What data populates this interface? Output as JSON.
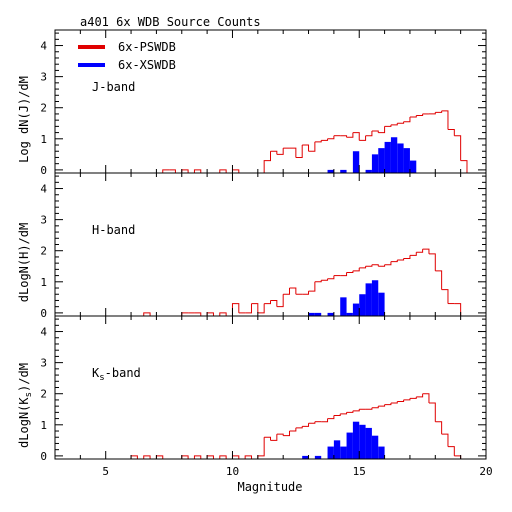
{
  "chart_data": {
    "type": "histogram",
    "title": "a401  6x WDB Source Counts",
    "xlabel": "Magnitude",
    "xlim": [
      3,
      20
    ],
    "ylim": [
      -0.1,
      4.5
    ],
    "x_ticks": [
      5,
      10,
      15,
      20
    ],
    "y_ticks": [
      0,
      1,
      2,
      3,
      4
    ],
    "bin_width": 0.25,
    "legend": [
      {
        "name": "6x-PSWDB",
        "color": "#e00000"
      },
      {
        "name": "6x-XSWDB",
        "color": "#0000ff"
      }
    ],
    "panels": [
      {
        "label": "J-band",
        "ylabel": "Log dN(J)/dM",
        "pswdb": [
          [
            7.25,
            0.0
          ],
          [
            7.5,
            0.0
          ],
          [
            8.0,
            0.0
          ],
          [
            8.5,
            0.0
          ],
          [
            9.5,
            0.0
          ],
          [
            10.0,
            0.0
          ],
          [
            11.25,
            0.3
          ],
          [
            11.5,
            0.6
          ],
          [
            11.75,
            0.5
          ],
          [
            12.0,
            0.7
          ],
          [
            12.25,
            0.7
          ],
          [
            12.5,
            0.4
          ],
          [
            12.75,
            0.8
          ],
          [
            13.0,
            0.6
          ],
          [
            13.25,
            0.9
          ],
          [
            13.5,
            0.95
          ],
          [
            13.75,
            1.0
          ],
          [
            14.0,
            1.1
          ],
          [
            14.25,
            1.1
          ],
          [
            14.5,
            1.05
          ],
          [
            14.75,
            1.2
          ],
          [
            15.0,
            0.95
          ],
          [
            15.25,
            1.1
          ],
          [
            15.5,
            1.25
          ],
          [
            15.75,
            1.2
          ],
          [
            16.0,
            1.4
          ],
          [
            16.25,
            1.45
          ],
          [
            16.5,
            1.5
          ],
          [
            16.75,
            1.55
          ],
          [
            17.0,
            1.7
          ],
          [
            17.25,
            1.75
          ],
          [
            17.5,
            1.8
          ],
          [
            17.75,
            1.8
          ],
          [
            18.0,
            1.85
          ],
          [
            18.25,
            1.9
          ],
          [
            18.5,
            1.3
          ],
          [
            18.75,
            1.1
          ],
          [
            19.0,
            0.3
          ]
        ],
        "xswdb": [
          [
            13.75,
            0.0
          ],
          [
            14.25,
            0.0
          ],
          [
            14.75,
            0.6
          ],
          [
            15.25,
            0.0
          ],
          [
            15.5,
            0.5
          ],
          [
            15.75,
            0.7
          ],
          [
            16.0,
            0.9
          ],
          [
            16.25,
            1.05
          ],
          [
            16.5,
            0.85
          ],
          [
            16.75,
            0.7
          ],
          [
            17.0,
            0.3
          ]
        ]
      },
      {
        "label": "H-band",
        "ylabel": "dLogN(H)/dM",
        "pswdb": [
          [
            6.5,
            0.0
          ],
          [
            8.0,
            0.0
          ],
          [
            8.25,
            0.0
          ],
          [
            8.5,
            0.0
          ],
          [
            9.0,
            0.0
          ],
          [
            9.5,
            0.0
          ],
          [
            10.0,
            0.3
          ],
          [
            10.25,
            0.0
          ],
          [
            10.5,
            0.0
          ],
          [
            10.75,
            0.3
          ],
          [
            11.0,
            0.0
          ],
          [
            11.25,
            0.3
          ],
          [
            11.5,
            0.4
          ],
          [
            11.75,
            0.2
          ],
          [
            12.0,
            0.6
          ],
          [
            12.25,
            0.8
          ],
          [
            12.5,
            0.6
          ],
          [
            12.75,
            0.6
          ],
          [
            13.0,
            0.7
          ],
          [
            13.25,
            1.0
          ],
          [
            13.5,
            1.05
          ],
          [
            13.75,
            1.1
          ],
          [
            14.0,
            1.2
          ],
          [
            14.25,
            1.2
          ],
          [
            14.5,
            1.3
          ],
          [
            14.75,
            1.35
          ],
          [
            15.0,
            1.45
          ],
          [
            15.25,
            1.5
          ],
          [
            15.5,
            1.55
          ],
          [
            15.75,
            1.5
          ],
          [
            16.0,
            1.55
          ],
          [
            16.25,
            1.65
          ],
          [
            16.5,
            1.7
          ],
          [
            16.75,
            1.75
          ],
          [
            17.0,
            1.85
          ],
          [
            17.25,
            1.95
          ],
          [
            17.5,
            2.05
          ],
          [
            17.75,
            1.9
          ],
          [
            18.0,
            1.35
          ],
          [
            18.25,
            0.75
          ],
          [
            18.5,
            0.3
          ],
          [
            18.75,
            0.3
          ]
        ],
        "xswdb": [
          [
            13.0,
            0.0
          ],
          [
            13.25,
            0.0
          ],
          [
            13.75,
            0.0
          ],
          [
            14.25,
            0.5
          ],
          [
            14.5,
            0.0
          ],
          [
            14.75,
            0.3
          ],
          [
            15.0,
            0.6
          ],
          [
            15.25,
            0.95
          ],
          [
            15.5,
            1.05
          ],
          [
            15.75,
            0.65
          ]
        ]
      },
      {
        "label": "K",
        "label_sub": "s",
        "label_suffix": "-band",
        "ylabel": "dLogN(K",
        "ylabel_sub": "s",
        "ylabel_suffix": ")/dM",
        "pswdb": [
          [
            6.0,
            0.0
          ],
          [
            6.5,
            0.0
          ],
          [
            7.0,
            0.0
          ],
          [
            8.0,
            0.0
          ],
          [
            8.5,
            0.0
          ],
          [
            9.0,
            0.0
          ],
          [
            9.5,
            0.0
          ],
          [
            10.0,
            0.0
          ],
          [
            10.5,
            0.0
          ],
          [
            11.0,
            0.0
          ],
          [
            11.25,
            0.6
          ],
          [
            11.5,
            0.5
          ],
          [
            11.75,
            0.7
          ],
          [
            12.0,
            0.65
          ],
          [
            12.25,
            0.8
          ],
          [
            12.5,
            0.9
          ],
          [
            12.75,
            0.95
          ],
          [
            13.0,
            1.05
          ],
          [
            13.25,
            1.1
          ],
          [
            13.5,
            1.1
          ],
          [
            13.75,
            1.2
          ],
          [
            14.0,
            1.3
          ],
          [
            14.25,
            1.35
          ],
          [
            14.5,
            1.4
          ],
          [
            14.75,
            1.45
          ],
          [
            15.0,
            1.5
          ],
          [
            15.25,
            1.5
          ],
          [
            15.5,
            1.55
          ],
          [
            15.75,
            1.6
          ],
          [
            16.0,
            1.65
          ],
          [
            16.25,
            1.7
          ],
          [
            16.5,
            1.75
          ],
          [
            16.75,
            1.8
          ],
          [
            17.0,
            1.85
          ],
          [
            17.25,
            1.9
          ],
          [
            17.5,
            2.0
          ],
          [
            17.75,
            1.7
          ],
          [
            18.0,
            1.1
          ],
          [
            18.25,
            0.7
          ],
          [
            18.5,
            0.3
          ],
          [
            18.75,
            0.0
          ]
        ],
        "xswdb": [
          [
            12.75,
            0.0
          ],
          [
            13.25,
            0.0
          ],
          [
            13.75,
            0.3
          ],
          [
            14.0,
            0.5
          ],
          [
            14.25,
            0.3
          ],
          [
            14.5,
            0.75
          ],
          [
            14.75,
            1.1
          ],
          [
            15.0,
            1.0
          ],
          [
            15.25,
            0.9
          ],
          [
            15.5,
            0.65
          ],
          [
            15.75,
            0.3
          ]
        ]
      }
    ]
  }
}
